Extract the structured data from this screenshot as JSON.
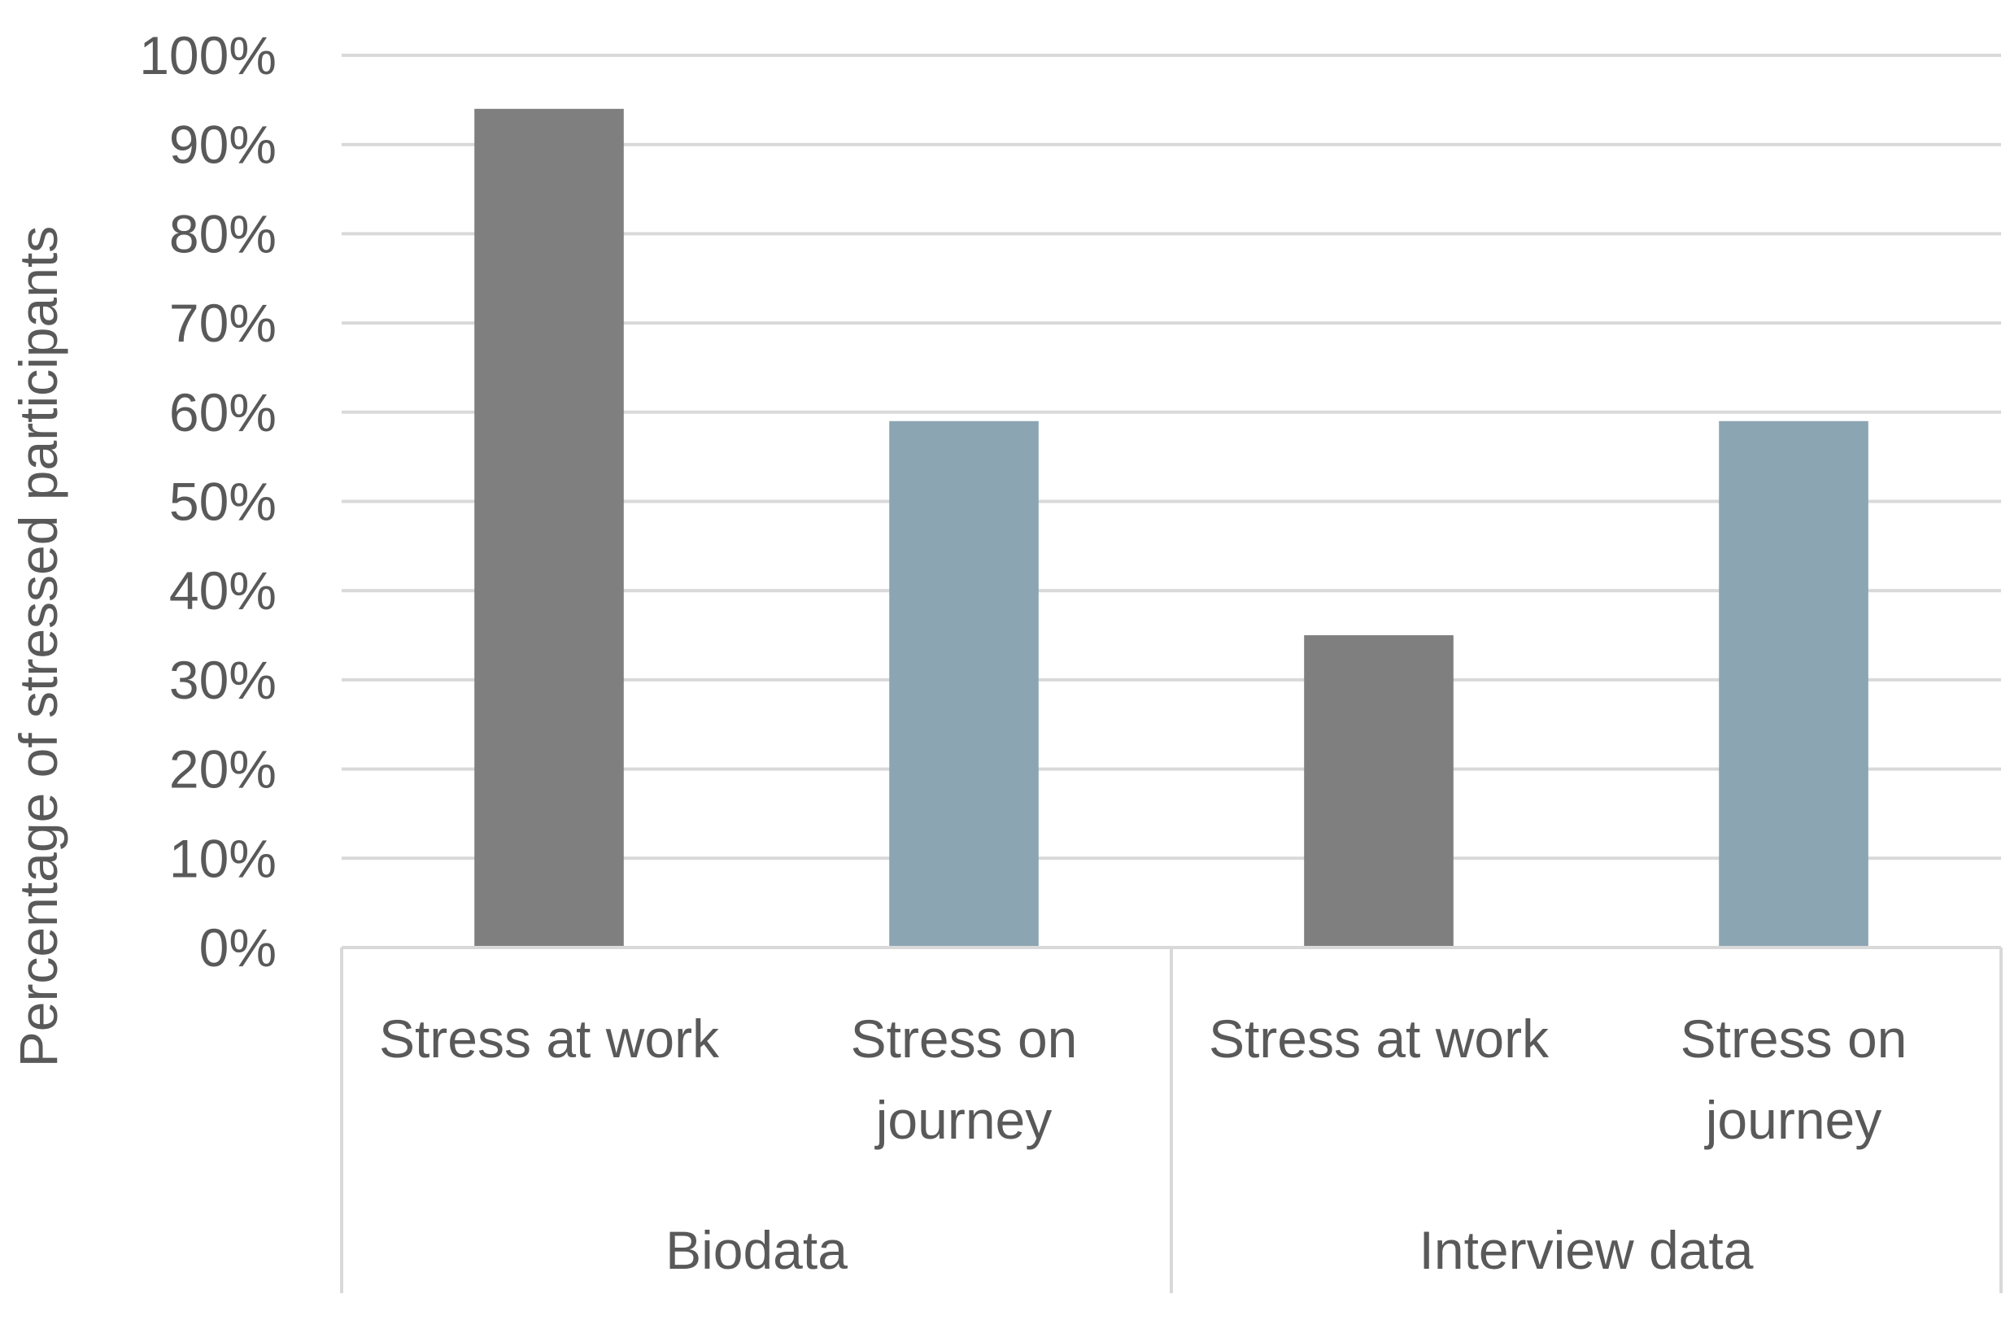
{
  "chart_data": {
    "type": "bar",
    "ylabel": "Percentage of stressed participants",
    "xlabel": "",
    "ylim": [
      0,
      100
    ],
    "yticks": [
      "0%",
      "10%",
      "20%",
      "30%",
      "40%",
      "50%",
      "60%",
      "70%",
      "80%",
      "90%",
      "100%"
    ],
    "grid": true,
    "groups": [
      {
        "name": "Biodata",
        "bars": [
          {
            "label": [
              "Stress at work"
            ],
            "value": 94,
            "color": "#7f7f7f"
          },
          {
            "label": [
              "Stress on",
              "journey"
            ],
            "value": 59,
            "color": "#8ba5b3"
          }
        ]
      },
      {
        "name": "Interview data",
        "bars": [
          {
            "label": [
              "Stress at work"
            ],
            "value": 35,
            "color": "#7f7f7f"
          },
          {
            "label": [
              "Stress on",
              "journey"
            ],
            "value": 59,
            "color": "#8ba5b3"
          }
        ]
      }
    ]
  }
}
